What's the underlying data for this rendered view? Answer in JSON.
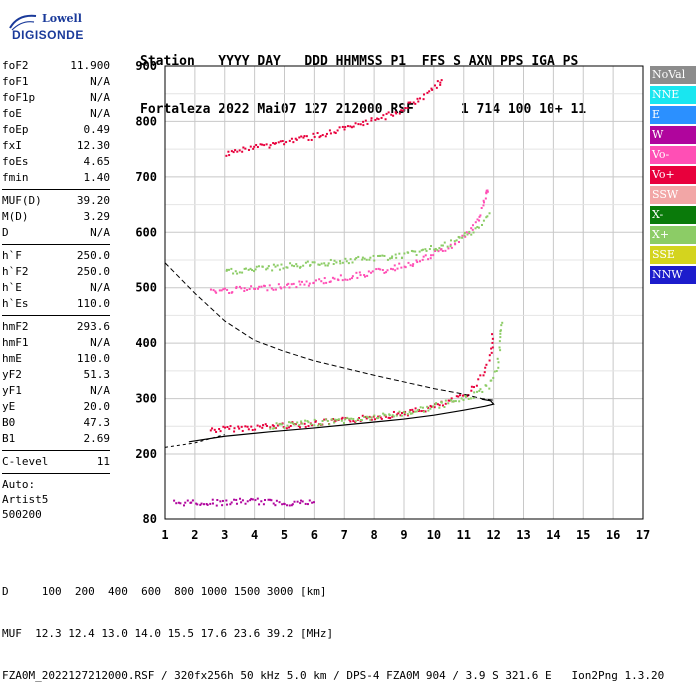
{
  "logo": {
    "line1": "Lowell",
    "line2": "DIGISONDE"
  },
  "header": {
    "line1": "Station   YYYY DAY   DDD HHMMSS P1  FFS S AXN PPS IGA PS",
    "line2": "Fortaleza 2022 Mai07 127 212000 RSF      1 714 100 10+ 11"
  },
  "params": {
    "group1": [
      {
        "k": "foF2",
        "v": "11.900"
      },
      {
        "k": "foF1",
        "v": "N/A"
      },
      {
        "k": "foF1p",
        "v": "N/A"
      },
      {
        "k": "foE",
        "v": "N/A"
      },
      {
        "k": "foEp",
        "v": "0.49"
      },
      {
        "k": "fxI",
        "v": "12.30"
      },
      {
        "k": "foEs",
        "v": "4.65"
      },
      {
        "k": "fmin",
        "v": "1.40"
      }
    ],
    "group2": [
      {
        "k": "MUF(D)",
        "v": "39.20"
      },
      {
        "k": "M(D)",
        "v": "3.29"
      },
      {
        "k": "D",
        "v": "N/A"
      }
    ],
    "group3": [
      {
        "k": "h`F",
        "v": "250.0"
      },
      {
        "k": "h`F2",
        "v": "250.0"
      },
      {
        "k": "h`E",
        "v": "N/A"
      },
      {
        "k": "h`Es",
        "v": "110.0"
      }
    ],
    "group4": [
      {
        "k": "hmF2",
        "v": "293.6"
      },
      {
        "k": "hmF1",
        "v": "N/A"
      },
      {
        "k": "hmE",
        "v": "110.0"
      },
      {
        "k": "yF2",
        "v": "51.3"
      },
      {
        "k": "yF1",
        "v": "N/A"
      },
      {
        "k": "yE",
        "v": "20.0"
      },
      {
        "k": "B0",
        "v": "47.3"
      },
      {
        "k": "B1",
        "v": "2.69"
      }
    ],
    "group5": [
      {
        "k": "C-level",
        "v": "11"
      }
    ],
    "autoscale": [
      "Auto:",
      "Artist5",
      "500200"
    ]
  },
  "legend": [
    {
      "label": "NoVal",
      "color": "#8c8c8c"
    },
    {
      "label": "NNE",
      "color": "#19e6f0"
    },
    {
      "label": "E",
      "color": "#2b90ff"
    },
    {
      "label": "W",
      "color": "#b0059d"
    },
    {
      "label": "Vo-",
      "color": "#ff4fb5"
    },
    {
      "label": "Vo+",
      "color": "#e8003c"
    },
    {
      "label": "SSW",
      "color": "#f2a6a6"
    },
    {
      "label": "X-",
      "color": "#0a7a0a"
    },
    {
      "label": "X+",
      "color": "#8ccc66"
    },
    {
      "label": "SSE",
      "color": "#d4d41e"
    },
    {
      "label": "NNW",
      "color": "#1c1ccc"
    }
  ],
  "footer": {
    "line1": "D     100  200  400  600  800 1000 1500 3000 [km]",
    "line2": "MUF  12.3 12.4 13.0 14.0 15.5 17.6 23.6 39.2 [MHz]",
    "line3": "FZA0M_2022127212000.RSF / 320fx256h 50 kHz 5.0 km / DPS-4 FZA0M 904 / 3.9 S 321.6 E   Ion2Png 1.3.20"
  },
  "chart_data": {
    "type": "scatter",
    "x": {
      "min": 1,
      "max": 17,
      "ticks": [
        1,
        2,
        3,
        4,
        5,
        6,
        7,
        8,
        9,
        10,
        11,
        12,
        13,
        14,
        15,
        16,
        17
      ]
    },
    "y": {
      "min": 80,
      "max": 900,
      "ticks": [
        80,
        200,
        300,
        400,
        500,
        600,
        700,
        800,
        900
      ]
    },
    "grid": true,
    "traces": [
      {
        "name": "O-trace F2",
        "color": "#e8003c",
        "points": [
          [
            2.5,
            245
          ],
          [
            4,
            250
          ],
          [
            5.5,
            255
          ],
          [
            7,
            262
          ],
          [
            8.5,
            272
          ],
          [
            9.5,
            280
          ],
          [
            10.5,
            295
          ],
          [
            11.2,
            315
          ],
          [
            11.6,
            345
          ],
          [
            11.9,
            385
          ],
          [
            11.95,
            420
          ]
        ]
      },
      {
        "name": "X-trace F2",
        "color": "#8ccc66",
        "points": [
          [
            4.5,
            252
          ],
          [
            6,
            258
          ],
          [
            7.5,
            265
          ],
          [
            9,
            275
          ],
          [
            10.2,
            290
          ],
          [
            11.2,
            305
          ],
          [
            11.8,
            325
          ],
          [
            12.1,
            360
          ],
          [
            12.2,
            410
          ],
          [
            12.25,
            440
          ]
        ]
      },
      {
        "name": "Es-trace",
        "color": "#b0059d",
        "points": [
          [
            1.3,
            112
          ],
          [
            2,
            112
          ],
          [
            3,
            112
          ],
          [
            3.8,
            115
          ],
          [
            4.6,
            112
          ],
          [
            5.2,
            112
          ],
          [
            6,
            112
          ]
        ]
      },
      {
        "name": "second-hop",
        "color": "#ff4fb5",
        "points": [
          [
            2.5,
            495
          ],
          [
            4,
            500
          ],
          [
            5.5,
            508
          ],
          [
            7,
            520
          ],
          [
            8.5,
            535
          ],
          [
            9.5,
            550
          ],
          [
            10.5,
            575
          ],
          [
            11.2,
            605
          ],
          [
            11.5,
            630
          ],
          [
            11.7,
            665
          ],
          [
            11.8,
            680
          ]
        ]
      },
      {
        "name": "second-hop X",
        "color": "#8ccc66",
        "points": [
          [
            3,
            530
          ],
          [
            5,
            540
          ],
          [
            7,
            550
          ],
          [
            9,
            560
          ],
          [
            10.5,
            580
          ],
          [
            11.5,
            610
          ],
          [
            11.9,
            640
          ]
        ]
      },
      {
        "name": "third-hop",
        "color": "#e8003c",
        "points": [
          [
            3,
            745
          ],
          [
            4.5,
            760
          ],
          [
            6,
            775
          ],
          [
            7.5,
            795
          ],
          [
            8.8,
            820
          ],
          [
            9.6,
            845
          ],
          [
            10,
            865
          ],
          [
            10.3,
            880
          ]
        ]
      }
    ],
    "profile_solid": [
      [
        1.8,
        222
      ],
      [
        3,
        232
      ],
      [
        4.5,
        240
      ],
      [
        6,
        247
      ],
      [
        7.5,
        255
      ],
      [
        9,
        263
      ],
      [
        10,
        270
      ],
      [
        11,
        279
      ],
      [
        11.7,
        286
      ],
      [
        12,
        290
      ],
      [
        11.9,
        296
      ],
      [
        11.6,
        299
      ]
    ],
    "profile_dashed": [
      [
        1,
        545
      ],
      [
        2,
        490
      ],
      [
        3,
        440
      ],
      [
        4,
        405
      ],
      [
        5,
        385
      ],
      [
        6,
        368
      ],
      [
        7,
        355
      ],
      [
        8,
        342
      ],
      [
        9,
        330
      ],
      [
        10,
        318
      ],
      [
        11,
        308
      ],
      [
        11.6,
        300
      ],
      [
        12,
        297
      ]
    ],
    "muf_line": [
      [
        1,
        212
      ],
      [
        2,
        220
      ],
      [
        3,
        235
      ]
    ]
  }
}
